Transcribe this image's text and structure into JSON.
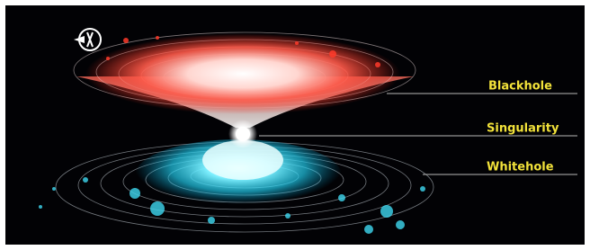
{
  "labels": [
    "Blackhole",
    "Singularity",
    "Whitehole"
  ]
}
